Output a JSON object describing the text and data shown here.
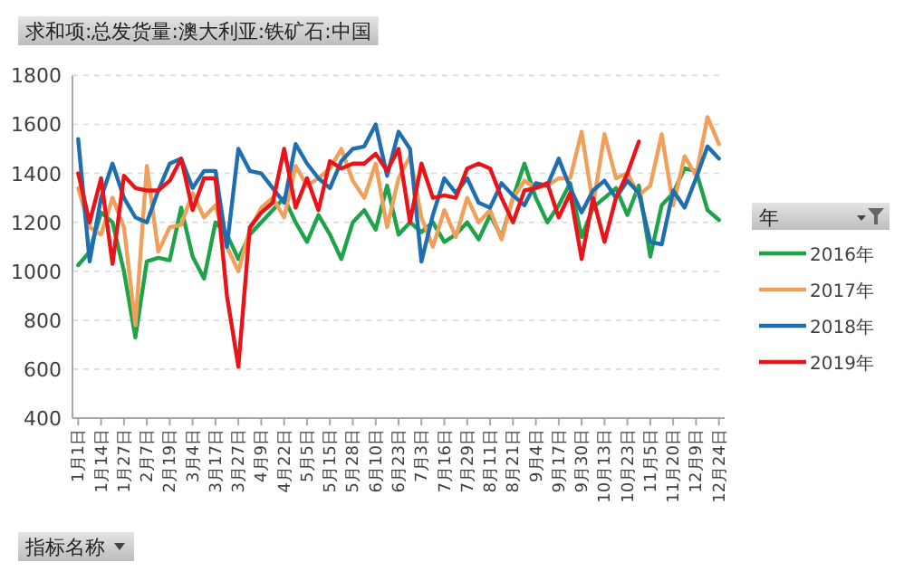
{
  "chart_data": {
    "type": "line",
    "title": "求和项:总发货量:澳大利亚:铁矿石:中国",
    "legend_title": "年",
    "annotations": [
      "指标名称"
    ],
    "categories": [
      "1月1日",
      null,
      "1月14日",
      null,
      "1月27日",
      null,
      "2月7日",
      null,
      "2月19日",
      null,
      "3月4日",
      null,
      "3月17日",
      null,
      "3月27日",
      null,
      "4月9日",
      null,
      "4月22日",
      null,
      "5月5日",
      null,
      "5月15日",
      null,
      "5月28日",
      null,
      "6月10日",
      null,
      "6月23日",
      null,
      "7月3日",
      null,
      "7月16日",
      null,
      "7月29日",
      null,
      "8月11日",
      null,
      "8月21日",
      null,
      "9月4日",
      null,
      "9月17日",
      null,
      "9月30日",
      null,
      "10月13日",
      null,
      "10月23日",
      null,
      "11月5日",
      null,
      "11月20日",
      null,
      "12月9日",
      null,
      "12月24日"
    ],
    "series": [
      {
        "name": "2016年",
        "color": "#1fa34a",
        "values": [
          1025,
          1080,
          1240,
          1200,
          1000,
          730,
          1040,
          1055,
          1045,
          1260,
          1060,
          970,
          1200,
          1150,
          1050,
          1150,
          1200,
          1250,
          1300,
          1200,
          1120,
          1230,
          1150,
          1050,
          1200,
          1250,
          1170,
          1350,
          1150,
          1200,
          1160,
          1200,
          1120,
          1150,
          1200,
          1130,
          1230,
          1140,
          1300,
          1440,
          1300,
          1200,
          1270,
          1360,
          1140,
          1260,
          1300,
          1340,
          1230,
          1350,
          1060,
          1270,
          1320,
          1420,
          1410,
          1250,
          1210
        ]
      },
      {
        "name": "2017年",
        "color": "#f0a05a",
        "values": [
          1340,
          1180,
          1150,
          1300,
          1180,
          780,
          1430,
          1080,
          1180,
          1190,
          1320,
          1220,
          1270,
          1100,
          1000,
          1170,
          1260,
          1300,
          1220,
          1430,
          1350,
          1380,
          1420,
          1500,
          1370,
          1300,
          1440,
          1180,
          1380,
          1470,
          1220,
          1100,
          1250,
          1140,
          1300,
          1200,
          1250,
          1130,
          1300,
          1370,
          1340,
          1350,
          1380,
          1380,
          1570,
          1270,
          1560,
          1380,
          1400,
          1310,
          1350,
          1560,
          1270,
          1470,
          1390,
          1630,
          1520
        ]
      },
      {
        "name": "2018年",
        "color": "#1f6fb0",
        "values": [
          1540,
          1040,
          1300,
          1440,
          1300,
          1220,
          1200,
          1330,
          1440,
          1460,
          1340,
          1410,
          1410,
          1100,
          1500,
          1410,
          1400,
          1340,
          1280,
          1520,
          1440,
          1380,
          1340,
          1450,
          1500,
          1510,
          1600,
          1390,
          1570,
          1500,
          1040,
          1230,
          1380,
          1320,
          1380,
          1280,
          1260,
          1360,
          1310,
          1270,
          1360,
          1350,
          1460,
          1340,
          1240,
          1330,
          1370,
          1300,
          1370,
          1320,
          1120,
          1110,
          1330,
          1260,
          1380,
          1510,
          1460
        ]
      },
      {
        "name": "2019年",
        "color": "#e8141a",
        "values": [
          1400,
          1200,
          1380,
          1030,
          1390,
          1340,
          1330,
          1330,
          1370,
          1460,
          1250,
          1380,
          1380,
          900,
          610,
          1180,
          1240,
          1280,
          1500,
          1260,
          1380,
          1250,
          1450,
          1420,
          1440,
          1440,
          1480,
          1410,
          1500,
          1200,
          1440,
          1300,
          1310,
          1300,
          1420,
          1440,
          1420,
          1300,
          1200,
          1330,
          1340,
          1360,
          1220,
          1320,
          1050,
          1300,
          1120,
          1300,
          1400,
          1530,
          null,
          null,
          null,
          null,
          null,
          null,
          null
        ]
      }
    ],
    "ylim": [
      400,
      1800
    ],
    "yticks": [
      400,
      600,
      800,
      1000,
      1200,
      1400,
      1600,
      1800
    ],
    "grid": "y",
    "legend": "right"
  }
}
